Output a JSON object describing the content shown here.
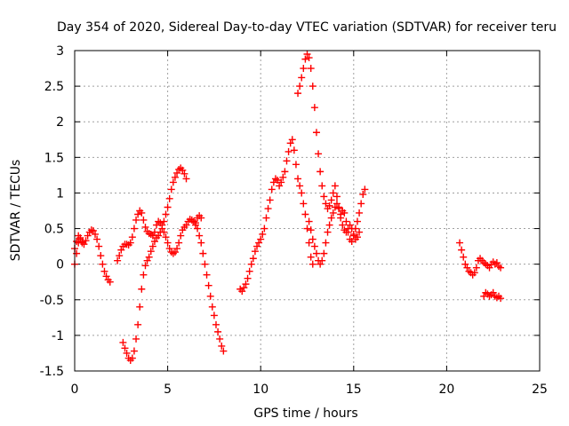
{
  "chart_data": {
    "type": "scatter",
    "title": "Day 354 of 2020, Sidereal Day-to-day VTEC variation (SDTVAR) for receiver teru",
    "xlabel": "GPS time / hours",
    "ylabel": "SDTVAR / TECUs",
    "xlim": [
      0,
      25
    ],
    "ylim": [
      -1.5,
      3
    ],
    "x_ticks": [
      "0",
      "5",
      "10",
      "15",
      "20",
      "25"
    ],
    "y_ticks": [
      "-1.5",
      "-1",
      "-0.5",
      "0",
      "0.5",
      "1",
      "1.5",
      "2",
      "2.5",
      "3"
    ],
    "grid": true,
    "marker": "+",
    "color": "#ff0000",
    "series": [
      {
        "points": [
          [
            0.0,
            0.0
          ],
          [
            0.1,
            0.15
          ],
          [
            0.2,
            0.3
          ],
          [
            0.3,
            0.35
          ],
          [
            0.4,
            0.3
          ],
          [
            0.5,
            0.28
          ],
          [
            0.6,
            0.33
          ],
          [
            0.7,
            0.4
          ],
          [
            0.8,
            0.45
          ],
          [
            0.9,
            0.48
          ],
          [
            1.0,
            0.47
          ],
          [
            1.1,
            0.42
          ],
          [
            1.2,
            0.35
          ],
          [
            1.3,
            0.25
          ],
          [
            1.4,
            0.12
          ],
          [
            1.5,
            0.0
          ],
          [
            1.6,
            -0.1
          ],
          [
            1.7,
            -0.17
          ],
          [
            1.8,
            -0.22
          ],
          [
            1.9,
            -0.25
          ]
        ]
      },
      {
        "points": [
          [
            0.0,
            0.22
          ],
          [
            0.1,
            0.32
          ],
          [
            0.2,
            0.4
          ],
          [
            0.3,
            0.37
          ],
          [
            0.4,
            0.32
          ]
        ]
      },
      {
        "points": [
          [
            2.3,
            0.05
          ],
          [
            2.4,
            0.12
          ],
          [
            2.5,
            0.2
          ],
          [
            2.6,
            0.25
          ],
          [
            2.7,
            0.28
          ],
          [
            2.8,
            0.28
          ],
          [
            2.9,
            0.27
          ],
          [
            3.0,
            0.3
          ],
          [
            3.1,
            0.38
          ],
          [
            3.2,
            0.5
          ],
          [
            3.3,
            0.62
          ],
          [
            3.4,
            0.7
          ],
          [
            3.5,
            0.75
          ],
          [
            3.6,
            0.72
          ],
          [
            3.7,
            0.62
          ],
          [
            3.8,
            0.52
          ],
          [
            3.9,
            0.46
          ],
          [
            4.0,
            0.43
          ],
          [
            4.1,
            0.42
          ],
          [
            4.2,
            0.4
          ],
          [
            4.3,
            0.45
          ],
          [
            4.4,
            0.55
          ],
          [
            4.5,
            0.6
          ],
          [
            4.6,
            0.58
          ],
          [
            4.7,
            0.55
          ],
          [
            4.8,
            0.6
          ],
          [
            4.9,
            0.7
          ],
          [
            5.0,
            0.8
          ],
          [
            5.1,
            0.92
          ],
          [
            5.2,
            1.05
          ],
          [
            5.3,
            1.15
          ],
          [
            5.4,
            1.22
          ],
          [
            5.5,
            1.28
          ],
          [
            5.6,
            1.33
          ],
          [
            5.7,
            1.35
          ],
          [
            5.8,
            1.32
          ],
          [
            5.9,
            1.27
          ],
          [
            6.0,
            1.2
          ]
        ]
      },
      {
        "points": [
          [
            2.6,
            -1.1
          ],
          [
            2.7,
            -1.18
          ],
          [
            2.8,
            -1.25
          ],
          [
            2.9,
            -1.32
          ],
          [
            3.0,
            -1.35
          ],
          [
            3.1,
            -1.32
          ],
          [
            3.2,
            -1.22
          ],
          [
            3.3,
            -1.05
          ],
          [
            3.4,
            -0.85
          ],
          [
            3.5,
            -0.6
          ],
          [
            3.6,
            -0.35
          ],
          [
            3.7,
            -0.15
          ],
          [
            3.8,
            -0.02
          ],
          [
            3.9,
            0.05
          ],
          [
            4.0,
            0.1
          ],
          [
            4.1,
            0.18
          ],
          [
            4.2,
            0.25
          ],
          [
            4.3,
            0.32
          ],
          [
            4.4,
            0.37
          ],
          [
            4.5,
            0.4
          ],
          [
            4.6,
            0.45
          ],
          [
            4.7,
            0.5
          ],
          [
            4.8,
            0.45
          ],
          [
            4.9,
            0.38
          ],
          [
            5.0,
            0.3
          ],
          [
            5.1,
            0.22
          ],
          [
            5.2,
            0.17
          ],
          [
            5.3,
            0.15
          ],
          [
            5.4,
            0.17
          ],
          [
            5.5,
            0.22
          ],
          [
            5.6,
            0.3
          ],
          [
            5.7,
            0.4
          ],
          [
            5.8,
            0.48
          ],
          [
            5.9,
            0.52
          ],
          [
            6.0,
            0.55
          ],
          [
            6.1,
            0.6
          ],
          [
            6.2,
            0.63
          ],
          [
            6.3,
            0.62
          ],
          [
            6.4,
            0.6
          ],
          [
            6.5,
            0.58
          ],
          [
            6.6,
            0.65
          ],
          [
            6.7,
            0.68
          ],
          [
            6.8,
            0.65
          ]
        ]
      },
      {
        "points": [
          [
            6.5,
            0.55
          ],
          [
            6.6,
            0.5
          ],
          [
            6.7,
            0.4
          ],
          [
            6.8,
            0.3
          ],
          [
            6.9,
            0.15
          ],
          [
            7.0,
            0.0
          ],
          [
            7.1,
            -0.15
          ],
          [
            7.2,
            -0.3
          ],
          [
            7.3,
            -0.45
          ],
          [
            7.4,
            -0.6
          ],
          [
            7.5,
            -0.72
          ],
          [
            7.6,
            -0.85
          ],
          [
            7.7,
            -0.95
          ],
          [
            7.8,
            -1.05
          ],
          [
            7.9,
            -1.15
          ],
          [
            8.0,
            -1.22
          ]
        ]
      },
      {
        "points": [
          [
            8.9,
            -0.35
          ],
          [
            9.0,
            -0.38
          ],
          [
            9.1,
            -0.33
          ],
          [
            9.2,
            -0.28
          ],
          [
            9.3,
            -0.2
          ],
          [
            9.4,
            -0.1
          ],
          [
            9.5,
            0.0
          ],
          [
            9.6,
            0.08
          ],
          [
            9.7,
            0.18
          ],
          [
            9.8,
            0.25
          ],
          [
            9.9,
            0.3
          ],
          [
            10.0,
            0.35
          ],
          [
            10.1,
            0.42
          ],
          [
            10.2,
            0.5
          ],
          [
            10.3,
            0.65
          ],
          [
            10.4,
            0.78
          ],
          [
            10.5,
            0.9
          ],
          [
            10.6,
            1.05
          ],
          [
            10.7,
            1.15
          ],
          [
            10.8,
            1.2
          ],
          [
            10.9,
            1.18
          ],
          [
            11.0,
            1.1
          ],
          [
            11.1,
            1.15
          ],
          [
            11.2,
            1.22
          ],
          [
            11.3,
            1.3
          ],
          [
            11.4,
            1.45
          ],
          [
            11.5,
            1.58
          ],
          [
            11.6,
            1.7
          ],
          [
            11.7,
            1.75
          ],
          [
            11.8,
            1.6
          ],
          [
            11.9,
            1.4
          ],
          [
            12.0,
            1.2
          ],
          [
            12.1,
            1.1
          ],
          [
            12.2,
            1.0
          ],
          [
            12.3,
            0.85
          ],
          [
            12.4,
            0.7
          ],
          [
            12.5,
            0.5
          ],
          [
            12.6,
            0.3
          ],
          [
            12.7,
            0.1
          ],
          [
            12.8,
            0.0
          ]
        ]
      },
      {
        "points": [
          [
            12.0,
            2.4
          ],
          [
            12.1,
            2.5
          ],
          [
            12.2,
            2.62
          ],
          [
            12.3,
            2.75
          ],
          [
            12.4,
            2.88
          ],
          [
            12.5,
            2.95
          ],
          [
            12.6,
            2.9
          ],
          [
            12.7,
            2.75
          ],
          [
            12.8,
            2.5
          ],
          [
            12.9,
            2.2
          ],
          [
            13.0,
            1.85
          ],
          [
            13.1,
            1.55
          ],
          [
            13.2,
            1.3
          ],
          [
            13.3,
            1.1
          ],
          [
            13.4,
            0.95
          ],
          [
            13.5,
            0.85
          ],
          [
            13.6,
            0.78
          ],
          [
            13.7,
            0.82
          ],
          [
            13.8,
            0.9
          ],
          [
            13.9,
            1.0
          ],
          [
            14.0,
            1.1
          ],
          [
            14.1,
            0.95
          ],
          [
            14.2,
            0.8
          ],
          [
            14.3,
            0.7
          ],
          [
            14.4,
            0.75
          ],
          [
            14.5,
            0.72
          ],
          [
            14.6,
            0.6
          ],
          [
            14.7,
            0.45
          ],
          [
            14.8,
            0.35
          ],
          [
            14.9,
            0.32
          ],
          [
            15.0,
            0.4
          ],
          [
            15.1,
            0.5
          ],
          [
            15.2,
            0.6
          ],
          [
            15.3,
            0.72
          ],
          [
            15.4,
            0.85
          ],
          [
            15.5,
            0.98
          ],
          [
            15.6,
            1.05
          ]
        ]
      },
      {
        "points": [
          [
            12.6,
            0.6
          ],
          [
            12.7,
            0.48
          ],
          [
            12.8,
            0.35
          ],
          [
            12.9,
            0.25
          ],
          [
            13.0,
            0.15
          ],
          [
            13.1,
            0.05
          ],
          [
            13.2,
            0.0
          ],
          [
            13.3,
            0.05
          ],
          [
            13.4,
            0.15
          ],
          [
            13.5,
            0.3
          ],
          [
            13.6,
            0.45
          ],
          [
            13.7,
            0.55
          ],
          [
            13.8,
            0.65
          ],
          [
            13.9,
            0.72
          ],
          [
            14.0,
            0.8
          ],
          [
            14.1,
            0.85
          ],
          [
            14.2,
            0.78
          ],
          [
            14.3,
            0.65
          ],
          [
            14.4,
            0.55
          ],
          [
            14.5,
            0.48
          ],
          [
            14.6,
            0.45
          ],
          [
            14.7,
            0.5
          ],
          [
            14.8,
            0.55
          ],
          [
            14.9,
            0.5
          ],
          [
            15.0,
            0.42
          ],
          [
            15.1,
            0.35
          ],
          [
            15.2,
            0.38
          ],
          [
            15.3,
            0.45
          ]
        ]
      },
      {
        "points": [
          [
            20.7,
            0.3
          ],
          [
            20.8,
            0.2
          ],
          [
            20.9,
            0.1
          ],
          [
            21.0,
            0.0
          ],
          [
            21.1,
            -0.05
          ],
          [
            21.2,
            -0.1
          ],
          [
            21.3,
            -0.12
          ],
          [
            21.4,
            -0.15
          ],
          [
            21.5,
            -0.12
          ],
          [
            21.6,
            -0.05
          ],
          [
            21.7,
            0.05
          ],
          [
            21.8,
            0.08
          ],
          [
            21.9,
            0.05
          ],
          [
            22.0,
            0.02
          ],
          [
            22.1,
            0.0
          ],
          [
            22.2,
            -0.02
          ],
          [
            22.3,
            -0.05
          ],
          [
            22.4,
            0.0
          ],
          [
            22.5,
            0.03
          ],
          [
            22.6,
            0.0
          ],
          [
            22.7,
            0.02
          ],
          [
            22.8,
            -0.03
          ],
          [
            22.9,
            -0.05
          ]
        ]
      },
      {
        "points": [
          [
            22.0,
            -0.45
          ],
          [
            22.1,
            -0.4
          ],
          [
            22.2,
            -0.42
          ],
          [
            22.3,
            -0.45
          ],
          [
            22.4,
            -0.43
          ],
          [
            22.5,
            -0.4
          ],
          [
            22.6,
            -0.45
          ],
          [
            22.7,
            -0.47
          ],
          [
            22.8,
            -0.45
          ],
          [
            22.9,
            -0.48
          ]
        ]
      }
    ]
  }
}
